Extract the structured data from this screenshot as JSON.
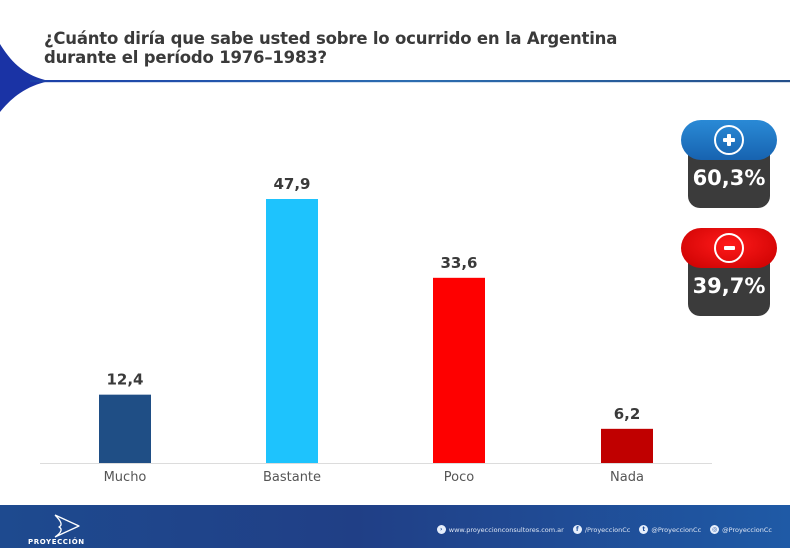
{
  "header": {
    "title_line1": "¿Cuánto diría que sabe usted sobre lo ocurrido en la Argentina",
    "title_line2": "durante el período 1976–1983?"
  },
  "chart_data": {
    "type": "bar",
    "title": "¿Cuánto diría que sabe usted sobre lo ocurrido en la Argentina durante el período 1976–1983?",
    "categories": [
      "Mucho",
      "Bastante",
      "Poco",
      "Nada"
    ],
    "values": [
      12.4,
      47.9,
      33.6,
      6.2
    ],
    "value_labels": [
      "12,4",
      "47,9",
      "33,6",
      "6,2"
    ],
    "colors": [
      "#1f4e85",
      "#1ec3fd",
      "#fe0000",
      "#c00000"
    ],
    "xlabel": "",
    "ylabel": "",
    "ylim": [
      0,
      47.9
    ],
    "grid": false,
    "legend": "none"
  },
  "summary": {
    "positive": {
      "icon": "plus-icon",
      "value": "60,3%",
      "color": "#1a6fc0"
    },
    "negative": {
      "icon": "minus-icon",
      "value": "39,7%",
      "color": "#e00000"
    }
  },
  "footer": {
    "brand": "PROYECCIÓN",
    "website": "www.proyeccionconsultores.com.ar",
    "facebook": "/ProyeccionCc",
    "twitter": "@ProyeccionCc",
    "instagram": "@ProyeccionCc"
  }
}
